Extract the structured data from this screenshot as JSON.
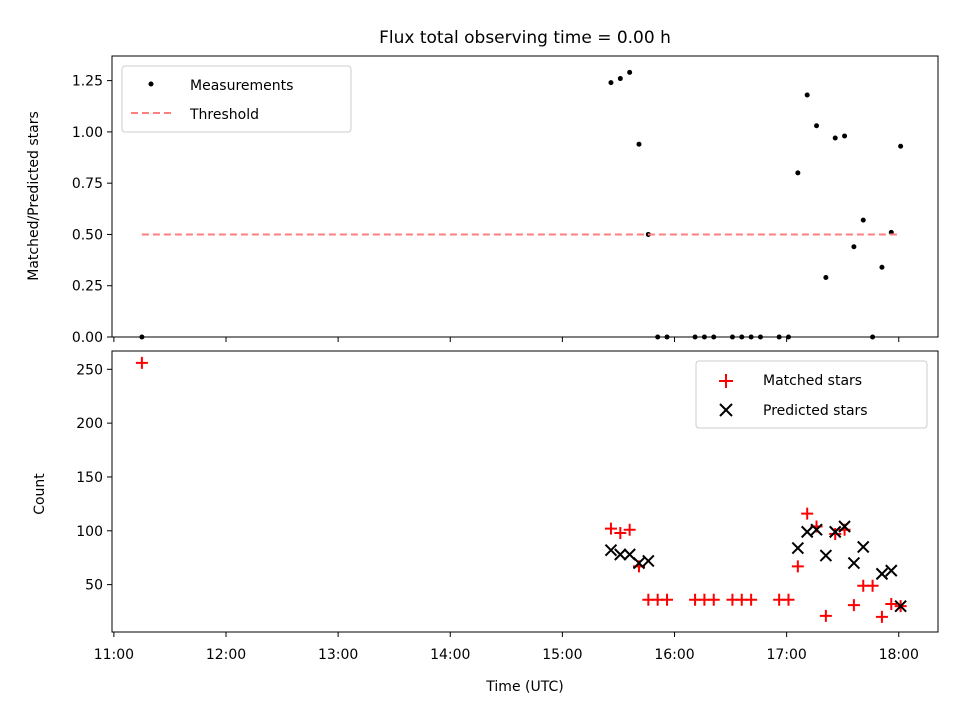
{
  "figure": {
    "title": "Flux total observing time = 0.00 h",
    "xlabel": "Time (UTC)"
  },
  "colors": {
    "measurements": "#000000",
    "threshold": "#ff7f7f",
    "matched": "#ff0000",
    "predicted": "#000000"
  },
  "chart_data": [
    {
      "type": "scatter",
      "panel": "top",
      "title": "Flux total observing time = 0.00 h",
      "xlabel": "",
      "ylabel": "Matched/Predicted stars",
      "x_axis": "time",
      "xlim": [
        "10:59",
        "18:21"
      ],
      "ylim": [
        0,
        1.37
      ],
      "xticks": [
        "11:00",
        "12:00",
        "13:00",
        "14:00",
        "15:00",
        "16:00",
        "17:00",
        "18:00"
      ],
      "yticks": [
        "0.00",
        "0.25",
        "0.50",
        "0.75",
        "1.00",
        "1.25"
      ],
      "legend": {
        "position": "top-left",
        "entries": [
          "Measurements",
          "Threshold"
        ]
      },
      "grid": false,
      "series": [
        {
          "name": "Measurements",
          "marker": "dot",
          "points": [
            [
              "11:15",
              0.0
            ],
            [
              "15:26",
              1.24
            ],
            [
              "15:31",
              1.26
            ],
            [
              "15:36",
              1.29
            ],
            [
              "15:41",
              0.94
            ],
            [
              "15:46",
              0.5
            ],
            [
              "15:51",
              0.0
            ],
            [
              "15:56",
              0.0
            ],
            [
              "16:11",
              0.0
            ],
            [
              "16:16",
              0.0
            ],
            [
              "16:21",
              0.0
            ],
            [
              "16:31",
              0.0
            ],
            [
              "16:36",
              0.0
            ],
            [
              "16:41",
              0.0
            ],
            [
              "16:46",
              0.0
            ],
            [
              "16:56",
              0.0
            ],
            [
              "17:01",
              0.0
            ],
            [
              "17:06",
              0.8
            ],
            [
              "17:11",
              1.18
            ],
            [
              "17:16",
              1.03
            ],
            [
              "17:21",
              0.29
            ],
            [
              "17:26",
              0.97
            ],
            [
              "17:31",
              0.98
            ],
            [
              "17:36",
              0.44
            ],
            [
              "17:41",
              0.57
            ],
            [
              "17:46",
              0.0
            ],
            [
              "17:51",
              0.34
            ],
            [
              "17:56",
              0.51
            ],
            [
              "18:01",
              0.93
            ]
          ]
        },
        {
          "name": "Threshold",
          "style": "dashed",
          "points": [
            [
              "11:15",
              0.5
            ],
            [
              "18:01",
              0.5
            ]
          ]
        }
      ]
    },
    {
      "type": "scatter",
      "panel": "bottom",
      "xlabel": "Time (UTC)",
      "ylabel": "Count",
      "x_axis": "time",
      "xlim": [
        "10:59",
        "18:21"
      ],
      "ylim": [
        6,
        267
      ],
      "xticks": [
        "11:00",
        "12:00",
        "13:00",
        "14:00",
        "15:00",
        "16:00",
        "17:00",
        "18:00"
      ],
      "yticks": [
        "50",
        "100",
        "150",
        "200",
        "250"
      ],
      "legend": {
        "position": "top-right",
        "entries": [
          "Matched stars",
          "Predicted stars"
        ]
      },
      "grid": false,
      "series": [
        {
          "name": "Matched stars",
          "marker": "plus",
          "points": [
            [
              "11:15",
              256
            ],
            [
              "15:26",
              102
            ],
            [
              "15:31",
              98
            ],
            [
              "15:36",
              101
            ],
            [
              "15:41",
              67
            ],
            [
              "15:46",
              36
            ],
            [
              "15:51",
              36
            ],
            [
              "15:56",
              36
            ],
            [
              "16:11",
              36
            ],
            [
              "16:16",
              36
            ],
            [
              "16:21",
              36
            ],
            [
              "16:31",
              36
            ],
            [
              "16:36",
              36
            ],
            [
              "16:41",
              36
            ],
            [
              "16:56",
              36
            ],
            [
              "17:01",
              36
            ],
            [
              "17:06",
              67
            ],
            [
              "17:11",
              116
            ],
            [
              "17:16",
              104
            ],
            [
              "17:21",
              21
            ],
            [
              "17:26",
              97
            ],
            [
              "17:31",
              101
            ],
            [
              "17:36",
              31
            ],
            [
              "17:41",
              49
            ],
            [
              "17:46",
              49
            ],
            [
              "17:51",
              20
            ],
            [
              "17:56",
              32
            ],
            [
              "18:01",
              30
            ]
          ]
        },
        {
          "name": "Predicted stars",
          "marker": "x",
          "points": [
            [
              "15:26",
              82
            ],
            [
              "15:31",
              78
            ],
            [
              "15:36",
              78
            ],
            [
              "15:41",
              70
            ],
            [
              "15:46",
              72
            ],
            [
              "17:06",
              84
            ],
            [
              "17:11",
              99
            ],
            [
              "17:16",
              101
            ],
            [
              "17:21",
              77
            ],
            [
              "17:26",
              99
            ],
            [
              "17:31",
              104
            ],
            [
              "17:36",
              70
            ],
            [
              "17:41",
              85
            ],
            [
              "17:51",
              60
            ],
            [
              "17:56",
              63
            ],
            [
              "18:01",
              30
            ]
          ]
        }
      ]
    }
  ]
}
